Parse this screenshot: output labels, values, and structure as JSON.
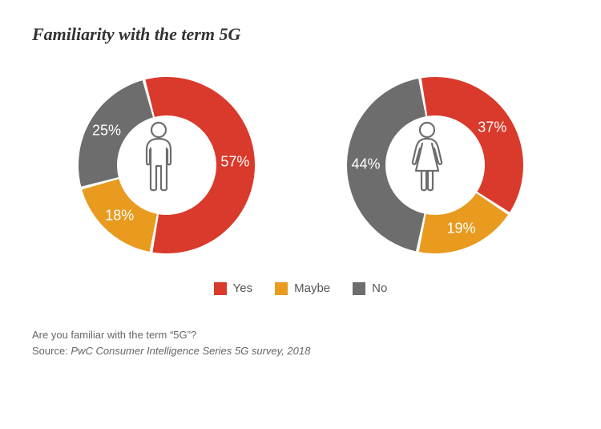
{
  "title": "Familiarity with the term 5G",
  "background_color": "#ffffff",
  "donut": {
    "outer_radius": 110,
    "inner_radius": 62,
    "gap_deg": 2,
    "label_fontsize": 18,
    "label_color": "#ffffff"
  },
  "charts": [
    {
      "icon": "male",
      "start_angle_deg": -15,
      "slices": [
        {
          "label": "57%",
          "value": 57,
          "color": "#d93a2b"
        },
        {
          "label": "18%",
          "value": 18,
          "color": "#e89b1f"
        },
        {
          "label": "25%",
          "value": 25,
          "color": "#6d6d6d"
        }
      ]
    },
    {
      "icon": "female",
      "start_angle_deg": -10,
      "slices": [
        {
          "label": "37%",
          "value": 37,
          "color": "#d93a2b"
        },
        {
          "label": "19%",
          "value": 19,
          "color": "#e89b1f"
        },
        {
          "label": "44%",
          "value": 44,
          "color": "#6d6d6d"
        }
      ]
    }
  ],
  "legend": [
    {
      "label": "Yes",
      "color": "#d93a2b"
    },
    {
      "label": "Maybe",
      "color": "#e89b1f"
    },
    {
      "label": "No",
      "color": "#6d6d6d"
    }
  ],
  "footer": {
    "question": "Are you familiar with the term “5G”?",
    "source_label": "Source: ",
    "source_text": "PwC Consumer Intelligence Series 5G survey, 2018"
  },
  "icon_stroke": "#6d6d6d"
}
